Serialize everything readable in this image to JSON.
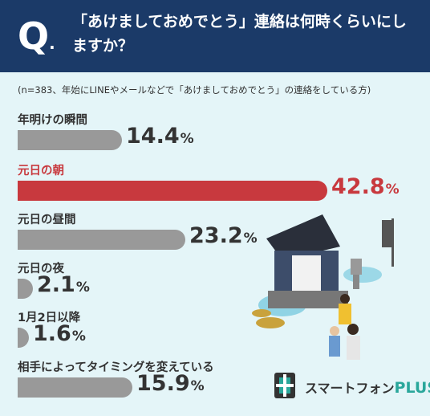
{
  "header": {
    "q_mark": "Q",
    "q_dot": ".",
    "question": "「あけましておめでとう」連絡は何時くらいにしますか？"
  },
  "note": "(n=383、年始にLINEやメールなどで「あけましておめでとう」の連絡をしている方)",
  "colors": {
    "header_bg": "#1b3a68",
    "bar_default": "#999999",
    "bar_highlight": "#c8393e",
    "background": "#e4f5f8"
  },
  "logo": {
    "name": "スマートフォン",
    "suffix": "PLUS"
  },
  "chart_data": {
    "type": "bar",
    "orientation": "horizontal",
    "unit": "%",
    "categories": [
      "年明けの瞬間",
      "元日の朝",
      "元日の昼間",
      "元日の夜",
      "1月2日以降",
      "相手によってタイミングを変えている"
    ],
    "values": [
      14.4,
      42.8,
      23.2,
      2.1,
      1.6,
      15.9
    ],
    "value_labels": [
      "14.4",
      "42.8",
      "23.2",
      "2.1",
      "1.6",
      "15.9"
    ],
    "highlight_index": 1,
    "title": "",
    "xlabel": "",
    "ylabel": "",
    "xlim": [
      0,
      42.8
    ]
  }
}
